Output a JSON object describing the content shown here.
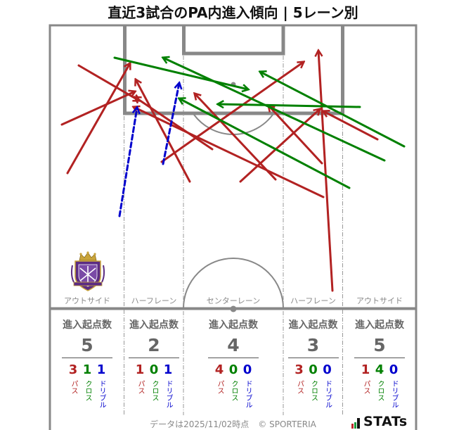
{
  "title": "直近3試合のPA内進入傾向 | 5レーン別",
  "legend": {
    "pass": "パス",
    "cross": "クロス",
    "dribble": "ドリブル"
  },
  "colors": {
    "pass": "#b22222",
    "cross": "#008000",
    "dribble": "#0000cd",
    "pitch_line": "#888888"
  },
  "lanes": [
    {
      "label": "アウトサイド",
      "header": "進入起点数",
      "total": "5",
      "pass": "3",
      "cross": "1",
      "dribble": "1"
    },
    {
      "label": "ハーフレーン",
      "header": "進入起点数",
      "total": "2",
      "pass": "1",
      "cross": "0",
      "dribble": "1"
    },
    {
      "label": "センターレーン",
      "header": "進入起点数",
      "total": "4",
      "pass": "4",
      "cross": "0",
      "dribble": "0"
    },
    {
      "label": "ハーフレーン",
      "header": "進入起点数",
      "total": "3",
      "pass": "3",
      "cross": "0",
      "dribble": "0"
    },
    {
      "label": "アウトサイド",
      "header": "進入起点数",
      "total": "5",
      "pass": "1",
      "cross": "4",
      "dribble": "0"
    }
  ],
  "footer": {
    "note": "データは2025/11/02時点",
    "copyright": "© SPORTERIA",
    "brand": "STATs"
  },
  "crest_icon": "team-crest-icon",
  "chart_data": {
    "type": "table",
    "title": "直近3試合のPA内進入傾向 | 5レーン別",
    "categories": [
      "アウトサイド",
      "ハーフレーン",
      "センターレーン",
      "ハーフレーン",
      "アウトサイド"
    ],
    "series": [
      {
        "name": "パス",
        "values": [
          3,
          1,
          4,
          3,
          1
        ]
      },
      {
        "name": "クロス",
        "values": [
          1,
          0,
          0,
          0,
          4
        ]
      },
      {
        "name": "ドリブル",
        "values": [
          1,
          1,
          0,
          0,
          0
        ]
      }
    ],
    "totals": [
      5,
      2,
      4,
      3,
      5
    ],
    "row_label": "進入起点数",
    "arrows": [
      {
        "type": "pass",
        "from": [
          96,
          246
        ],
        "to": [
          185,
          90
        ]
      },
      {
        "type": "pass",
        "from": [
          88,
          177
        ],
        "to": [
          192,
          130
        ]
      },
      {
        "type": "pass",
        "from": [
          112,
          93
        ],
        "to": [
          198,
          143
        ]
      },
      {
        "type": "pass",
        "from": [
          230,
          230
        ],
        "to": [
          432,
          88
        ]
      },
      {
        "type": "pass",
        "from": [
          270,
          258
        ],
        "to": [
          193,
          113
        ]
      },
      {
        "type": "pass",
        "from": [
          302,
          212
        ],
        "to": [
          192,
          138
        ]
      },
      {
        "type": "pass",
        "from": [
          342,
          258
        ],
        "to": [
          455,
          155
        ]
      },
      {
        "type": "pass",
        "from": [
          392,
          255
        ],
        "to": [
          277,
          133
        ]
      },
      {
        "type": "pass",
        "from": [
          458,
          232
        ],
        "to": [
          382,
          150
        ]
      },
      {
        "type": "pass",
        "from": [
          460,
          280
        ],
        "to": [
          190,
          152
        ]
      },
      {
        "type": "pass",
        "from": [
          473,
          413
        ],
        "to": [
          453,
          72
        ]
      },
      {
        "type": "pass",
        "from": [
          537,
          198
        ],
        "to": [
          460,
          158
        ]
      },
      {
        "type": "cross",
        "from": [
          163,
          82
        ],
        "to": [
          353,
          127
        ]
      },
      {
        "type": "cross",
        "from": [
          575,
          208
        ],
        "to": [
          370,
          102
        ]
      },
      {
        "type": "cross",
        "from": [
          547,
          228
        ],
        "to": [
          232,
          82
        ]
      },
      {
        "type": "cross",
        "from": [
          497,
          267
        ],
        "to": [
          255,
          140
        ]
      },
      {
        "type": "cross",
        "from": [
          512,
          152
        ],
        "to": [
          310,
          148
        ]
      },
      {
        "type": "dribble",
        "from": [
          170,
          307
        ],
        "to": [
          195,
          153
        ]
      },
      {
        "type": "dribble",
        "from": [
          232,
          233
        ],
        "to": [
          255,
          118
        ]
      }
    ]
  }
}
